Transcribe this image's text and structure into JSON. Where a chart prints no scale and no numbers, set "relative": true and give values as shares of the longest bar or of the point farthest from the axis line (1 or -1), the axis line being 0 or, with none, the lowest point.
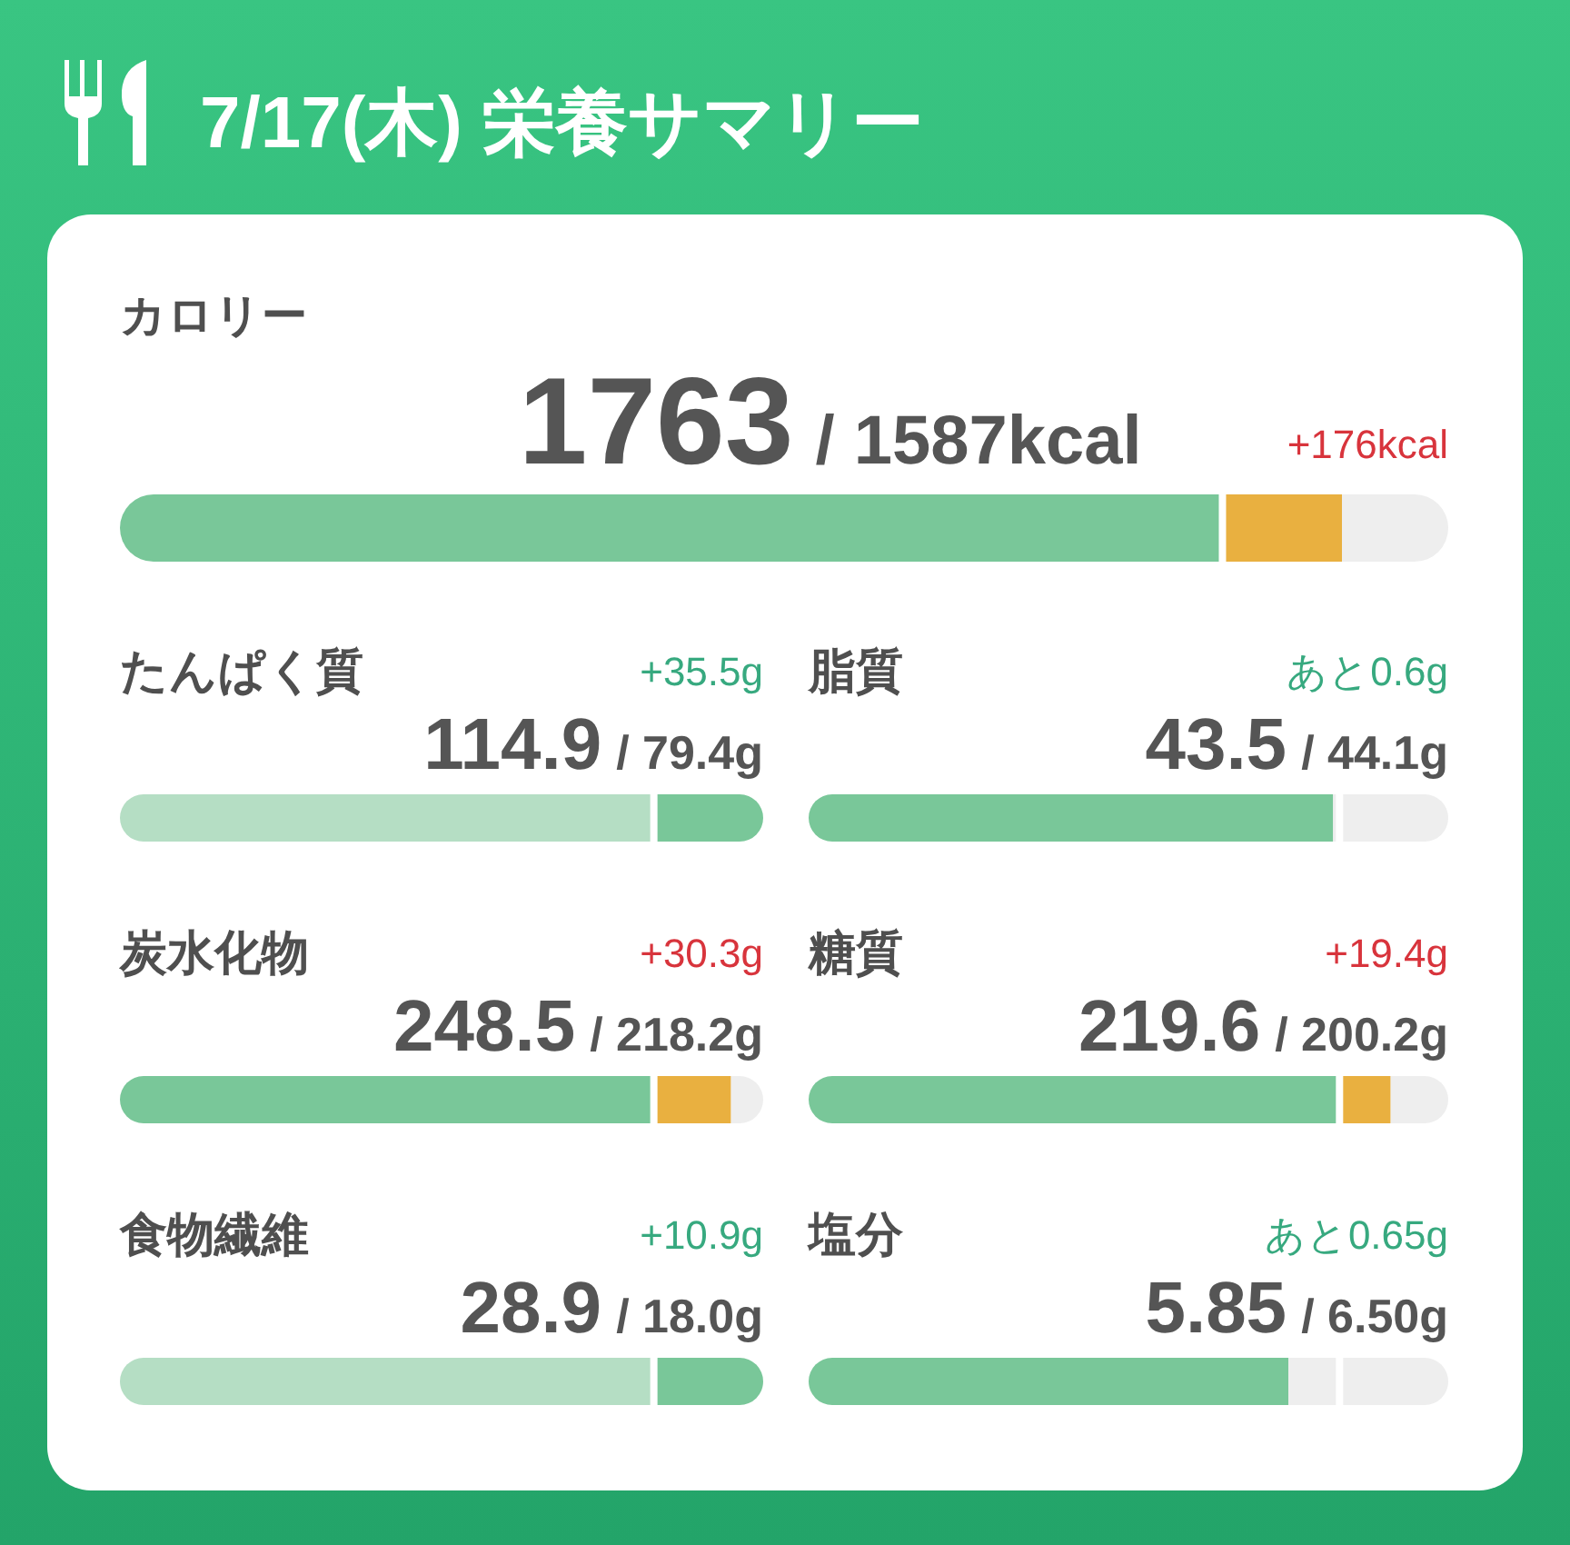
{
  "chart_data": [
    {
      "type": "other",
      "title": "7/17(木) 栄養サマリー"
    },
    {
      "type": "bar",
      "orientation": "horizontal",
      "stacked": true,
      "relative": true,
      "title": "カロリー",
      "categories": [
        null
      ],
      "series": [
        {
          "color": "#79c799",
          "values": [
            0.83
          ]
        },
        {
          "color": "#e9b040",
          "values": [
            0.09
          ]
        },
        {
          "color": "#eeeeee",
          "values": [
            0.08
          ]
        }
      ],
      "ref_lines": [
        {
          "axis": "x",
          "value": 0.83,
          "color": "#ffffff"
        }
      ],
      "annotations": [
        "1763",
        "/ 1587kcal",
        "+176kcal"
      ]
    },
    {
      "type": "bar",
      "orientation": "horizontal",
      "stacked": true,
      "relative": true,
      "title": "たんぱく質",
      "categories": [
        null
      ],
      "series": [
        {
          "color": "#b5dec4",
          "values": [
            0.83
          ]
        },
        {
          "color": "#79c799",
          "values": [
            0.17
          ]
        }
      ],
      "ref_lines": [
        {
          "axis": "x",
          "value": 0.83,
          "color": "#ffffff"
        }
      ],
      "annotations": [
        "114.9",
        "/ 79.4g",
        "+35.5g"
      ]
    },
    {
      "type": "bar",
      "orientation": "horizontal",
      "stacked": true,
      "relative": true,
      "title": "脂質",
      "categories": [
        null
      ],
      "series": [
        {
          "color": "#79c799",
          "values": [
            0.82
          ]
        },
        {
          "color": "#eeeeee",
          "values": [
            0.18
          ]
        }
      ],
      "ref_lines": [
        {
          "axis": "x",
          "value": 0.83,
          "color": "#ffffff"
        }
      ],
      "annotations": [
        "43.5",
        "/ 44.1g",
        "あと0.6g"
      ]
    },
    {
      "type": "bar",
      "orientation": "horizontal",
      "stacked": true,
      "relative": true,
      "title": "炭水化物",
      "categories": [
        null
      ],
      "series": [
        {
          "color": "#79c799",
          "values": [
            0.83
          ]
        },
        {
          "color": "#e9b040",
          "values": [
            0.12
          ]
        },
        {
          "color": "#eeeeee",
          "values": [
            0.05
          ]
        }
      ],
      "ref_lines": [
        {
          "axis": "x",
          "value": 0.83,
          "color": "#ffffff"
        }
      ],
      "annotations": [
        "248.5",
        "/ 218.2g",
        "+30.3g"
      ]
    },
    {
      "type": "bar",
      "orientation": "horizontal",
      "stacked": true,
      "relative": true,
      "title": "糖質",
      "categories": [
        null
      ],
      "series": [
        {
          "color": "#79c799",
          "values": [
            0.83
          ]
        },
        {
          "color": "#e9b040",
          "values": [
            0.08
          ]
        },
        {
          "color": "#eeeeee",
          "values": [
            0.09
          ]
        }
      ],
      "ref_lines": [
        {
          "axis": "x",
          "value": 0.83,
          "color": "#ffffff"
        }
      ],
      "annotations": [
        "219.6",
        "/ 200.2g",
        "+19.4g"
      ]
    },
    {
      "type": "bar",
      "orientation": "horizontal",
      "stacked": true,
      "relative": true,
      "title": "食物繊維",
      "categories": [
        null
      ],
      "series": [
        {
          "color": "#b5dec4",
          "values": [
            0.83
          ]
        },
        {
          "color": "#79c799",
          "values": [
            0.17
          ]
        }
      ],
      "ref_lines": [
        {
          "axis": "x",
          "value": 0.83,
          "color": "#ffffff"
        }
      ],
      "annotations": [
        "28.9",
        "/ 18.0g",
        "+10.9g"
      ]
    },
    {
      "type": "bar",
      "orientation": "horizontal",
      "stacked": true,
      "relative": true,
      "title": "塩分",
      "categories": [
        null
      ],
      "series": [
        {
          "color": "#79c799",
          "values": [
            0.75
          ]
        },
        {
          "color": "#eeeeee",
          "values": [
            0.25
          ]
        }
      ],
      "ref_lines": [
        {
          "axis": "x",
          "value": 0.83,
          "color": "#ffffff"
        }
      ],
      "annotations": [
        "5.85",
        "/ 6.50g",
        "あと0.65g"
      ]
    }
  ]
}
